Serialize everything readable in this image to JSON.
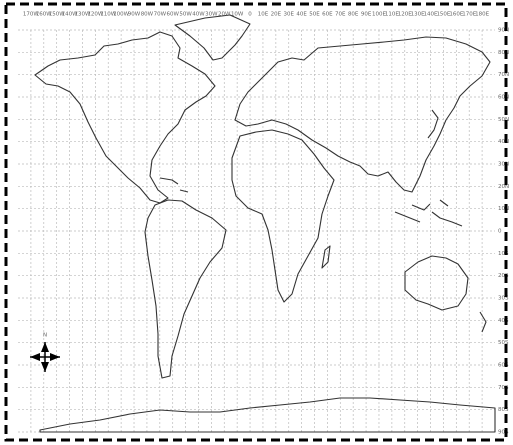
{
  "longitude_labels": [
    "170W",
    "160W",
    "150W",
    "140W",
    "130W",
    "120W",
    "110W",
    "100W",
    "90W",
    "80W",
    "70W",
    "60W",
    "50W",
    "40W",
    "30W",
    "20W",
    "10W",
    "0",
    "10E",
    "20E",
    "30E",
    "40E",
    "50E",
    "60E",
    "70E",
    "80E",
    "90E",
    "100E",
    "110E",
    "120E",
    "130E",
    "140E",
    "150E",
    "160E",
    "170E",
    "180E"
  ],
  "latitude_labels": [
    "90N",
    "80N",
    "70N",
    "60N",
    "50N",
    "40N",
    "30N",
    "20N",
    "10N",
    "0",
    "10S",
    "20S",
    "30S",
    "40S",
    "50S",
    "60S",
    "70S",
    "80S",
    "90S"
  ],
  "compass_label": "N"
}
